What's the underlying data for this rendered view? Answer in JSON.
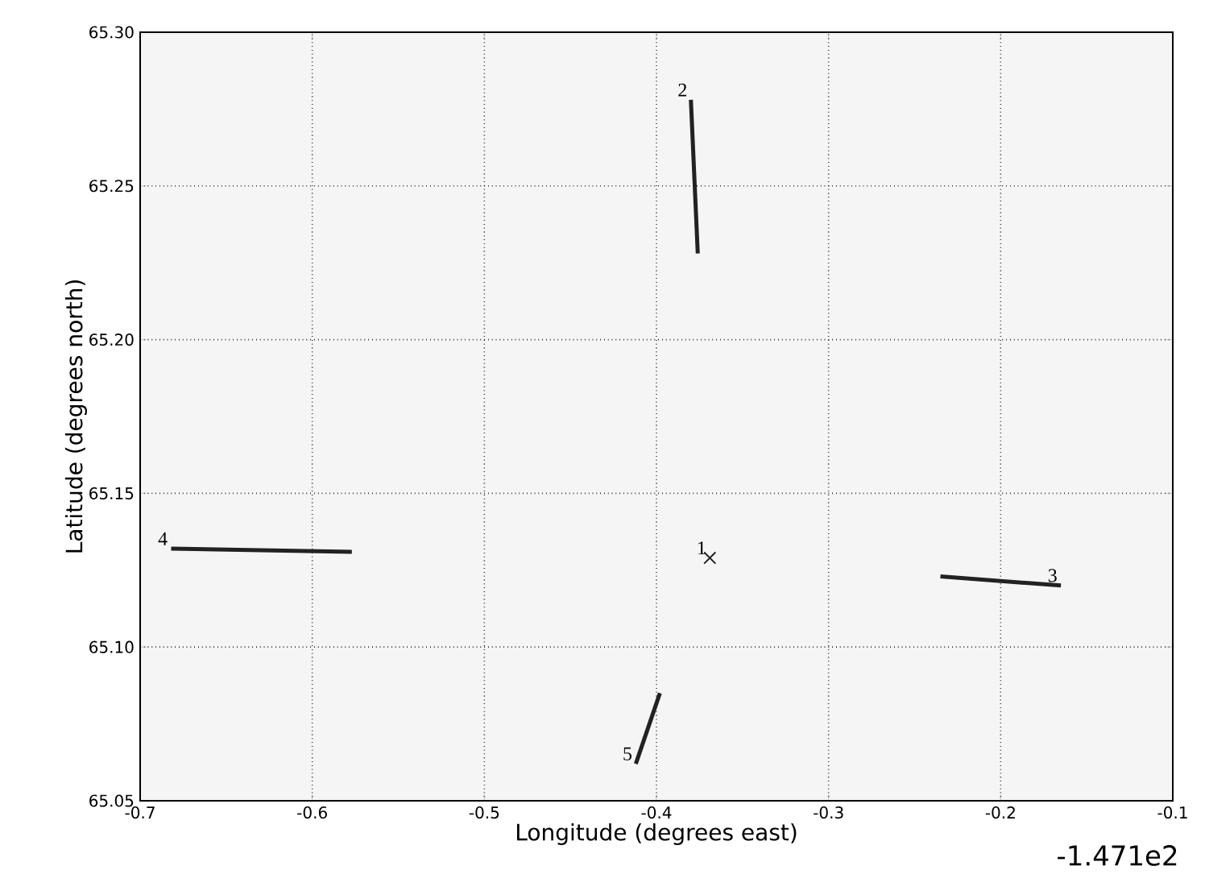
{
  "chart_data": {
    "type": "line",
    "xlabel": "Longitude (degrees east)",
    "ylabel": "Latitude (degrees north)",
    "xlim": [
      -0.7,
      -0.1
    ],
    "ylim": [
      65.05,
      65.3
    ],
    "xticks": [
      -0.7,
      -0.6,
      -0.5,
      -0.4,
      -0.3,
      -0.2,
      -0.1
    ],
    "yticks": [
      {
        "value": 65.05,
        "label": "65.05"
      },
      {
        "value": 65.1,
        "label": "65.10"
      },
      {
        "value": 65.15,
        "label": "65.15"
      },
      {
        "value": 65.2,
        "label": "65.20"
      },
      {
        "value": 65.25,
        "label": "65.25"
      },
      {
        "value": 65.3,
        "label": "65.30"
      }
    ],
    "grid": true,
    "series": [
      {
        "name": "1",
        "type": "scatter",
        "marker": "cross",
        "color": "#222222",
        "x": [
          -0.369
        ],
        "values": [
          65.129
        ]
      },
      {
        "name": "2",
        "color": "#222222",
        "x": [
          -0.38,
          -0.376
        ],
        "values": [
          65.278,
          65.228
        ]
      },
      {
        "name": "3",
        "color": "#222222",
        "x": [
          -0.165,
          -0.235
        ],
        "values": [
          65.12,
          65.123
        ]
      },
      {
        "name": "4",
        "color": "#222222",
        "x": [
          -0.682,
          -0.577
        ],
        "values": [
          65.132,
          65.131
        ]
      },
      {
        "name": "5",
        "color": "#222222",
        "x": [
          -0.412,
          -0.398
        ],
        "values": [
          65.062,
          65.085
        ]
      }
    ],
    "annotations": [
      "-1.471e2"
    ]
  }
}
